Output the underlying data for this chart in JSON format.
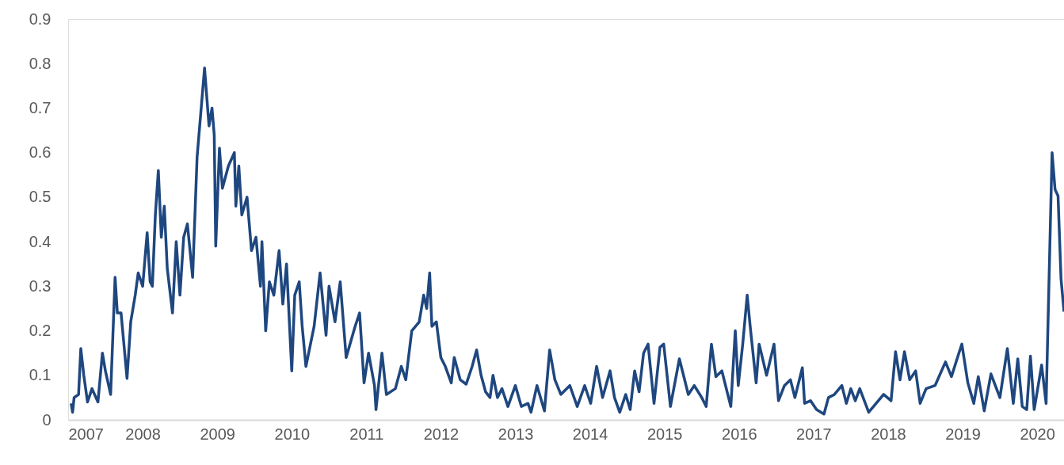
{
  "chart_data": {
    "type": "line",
    "xlim": [
      2007,
      2020.36
    ],
    "ylim": [
      0,
      0.9
    ],
    "xticks": [
      2007,
      2008,
      2009,
      2010,
      2011,
      2012,
      2013,
      2014,
      2015,
      2016,
      2017,
      2018,
      2019,
      2020
    ],
    "yticks": [
      0,
      0.1,
      0.2,
      0.3,
      0.4,
      0.5,
      0.6,
      0.7,
      0.8,
      0.9
    ],
    "grid": false,
    "legend": false,
    "marker": "none",
    "line_style": "solid",
    "series": [
      {
        "color": "#1f477f",
        "x": [
          2007.04,
          2007.06,
          2007.08,
          2007.14,
          2007.17,
          2007.21,
          2007.26,
          2007.32,
          2007.4,
          2007.46,
          2007.5,
          2007.57,
          2007.63,
          2007.66,
          2007.71,
          2007.79,
          2007.84,
          2007.9,
          2007.94,
          2008.0,
          2008.06,
          2008.1,
          2008.13,
          2008.17,
          2008.21,
          2008.25,
          2008.29,
          2008.33,
          2008.4,
          2008.45,
          2008.5,
          2008.55,
          2008.6,
          2008.67,
          2008.73,
          2008.78,
          2008.83,
          2008.89,
          2008.93,
          2008.96,
          2008.98,
          2009.03,
          2009.07,
          2009.15,
          2009.23,
          2009.25,
          2009.29,
          2009.33,
          2009.4,
          2009.46,
          2009.52,
          2009.58,
          2009.6,
          2009.65,
          2009.7,
          2009.76,
          2009.83,
          2009.88,
          2009.93,
          2010.0,
          2010.04,
          2010.1,
          2010.14,
          2010.19,
          2010.3,
          2010.38,
          2010.46,
          2010.5,
          2010.58,
          2010.65,
          2010.73,
          2010.85,
          2010.91,
          2010.97,
          2011.03,
          2011.11,
          2011.13,
          2011.21,
          2011.27,
          2011.39,
          2011.47,
          2011.53,
          2011.61,
          2011.71,
          2011.77,
          2011.81,
          2011.85,
          2011.88,
          2011.94,
          2012.0,
          2012.06,
          2012.14,
          2012.18,
          2012.26,
          2012.34,
          2012.42,
          2012.48,
          2012.54,
          2012.6,
          2012.66,
          2012.7,
          2012.76,
          2012.82,
          2012.9,
          2013.0,
          2013.08,
          2013.17,
          2013.21,
          2013.29,
          2013.39,
          2013.46,
          2013.53,
          2013.61,
          2013.73,
          2013.83,
          2013.93,
          2014.01,
          2014.09,
          2014.17,
          2014.27,
          2014.33,
          2014.4,
          2014.48,
          2014.54,
          2014.6,
          2014.66,
          2014.72,
          2014.78,
          2014.86,
          2014.94,
          2014.99,
          2015.08,
          2015.2,
          2015.32,
          2015.4,
          2015.5,
          2015.56,
          2015.63,
          2015.69,
          2015.77,
          2015.89,
          2015.95,
          2015.99,
          2016.05,
          2016.11,
          2016.15,
          2016.23,
          2016.27,
          2016.37,
          2016.47,
          2016.53,
          2016.61,
          2016.69,
          2016.75,
          2016.85,
          2016.88,
          2016.96,
          2017.04,
          2017.14,
          2017.2,
          2017.28,
          2017.38,
          2017.44,
          2017.5,
          2017.56,
          2017.62,
          2017.74,
          2017.84,
          2017.94,
          2018.04,
          2018.1,
          2018.16,
          2018.22,
          2018.29,
          2018.37,
          2018.43,
          2018.51,
          2018.63,
          2018.77,
          2018.85,
          2018.95,
          2018.99,
          2019.07,
          2019.15,
          2019.21,
          2019.29,
          2019.38,
          2019.5,
          2019.6,
          2019.68,
          2019.74,
          2019.8,
          2019.86,
          2019.91,
          2019.96,
          2020.06,
          2020.12,
          2020.2,
          2020.24,
          2020.28,
          2020.32,
          2020.36
        ],
        "values": [
          0.037,
          0.017,
          0.05,
          0.057,
          0.16,
          0.1,
          0.04,
          0.07,
          0.04,
          0.15,
          0.11,
          0.057,
          0.32,
          0.24,
          0.24,
          0.093,
          0.22,
          0.28,
          0.33,
          0.3,
          0.42,
          0.31,
          0.3,
          0.46,
          0.56,
          0.41,
          0.48,
          0.34,
          0.24,
          0.4,
          0.28,
          0.41,
          0.44,
          0.32,
          0.59,
          0.69,
          0.79,
          0.66,
          0.7,
          0.64,
          0.39,
          0.61,
          0.52,
          0.57,
          0.6,
          0.48,
          0.57,
          0.46,
          0.5,
          0.38,
          0.41,
          0.3,
          0.4,
          0.2,
          0.31,
          0.28,
          0.38,
          0.26,
          0.35,
          0.11,
          0.28,
          0.31,
          0.21,
          0.12,
          0.21,
          0.33,
          0.19,
          0.3,
          0.22,
          0.31,
          0.14,
          0.21,
          0.24,
          0.083,
          0.15,
          0.077,
          0.023,
          0.15,
          0.057,
          0.07,
          0.12,
          0.09,
          0.2,
          0.22,
          0.28,
          0.25,
          0.33,
          0.21,
          0.22,
          0.14,
          0.12,
          0.083,
          0.14,
          0.09,
          0.08,
          0.12,
          0.157,
          0.1,
          0.063,
          0.05,
          0.1,
          0.05,
          0.07,
          0.03,
          0.077,
          0.03,
          0.037,
          0.017,
          0.077,
          0.02,
          0.157,
          0.09,
          0.057,
          0.077,
          0.03,
          0.077,
          0.037,
          0.12,
          0.05,
          0.11,
          0.05,
          0.017,
          0.057,
          0.023,
          0.11,
          0.063,
          0.15,
          0.17,
          0.037,
          0.163,
          0.17,
          0.03,
          0.137,
          0.057,
          0.077,
          0.05,
          0.03,
          0.17,
          0.097,
          0.11,
          0.03,
          0.2,
          0.077,
          0.17,
          0.28,
          0.21,
          0.083,
          0.17,
          0.1,
          0.17,
          0.043,
          0.077,
          0.09,
          0.05,
          0.117,
          0.037,
          0.043,
          0.023,
          0.013,
          0.05,
          0.057,
          0.077,
          0.037,
          0.07,
          0.043,
          0.07,
          0.017,
          0.037,
          0.057,
          0.043,
          0.153,
          0.09,
          0.153,
          0.09,
          0.11,
          0.037,
          0.07,
          0.077,
          0.13,
          0.097,
          0.15,
          0.17,
          0.083,
          0.037,
          0.097,
          0.02,
          0.103,
          0.05,
          0.16,
          0.037,
          0.137,
          0.03,
          0.023,
          0.143,
          0.023,
          0.123,
          0.037,
          0.6,
          0.517,
          0.503,
          0.317,
          0.243
        ]
      }
    ]
  }
}
